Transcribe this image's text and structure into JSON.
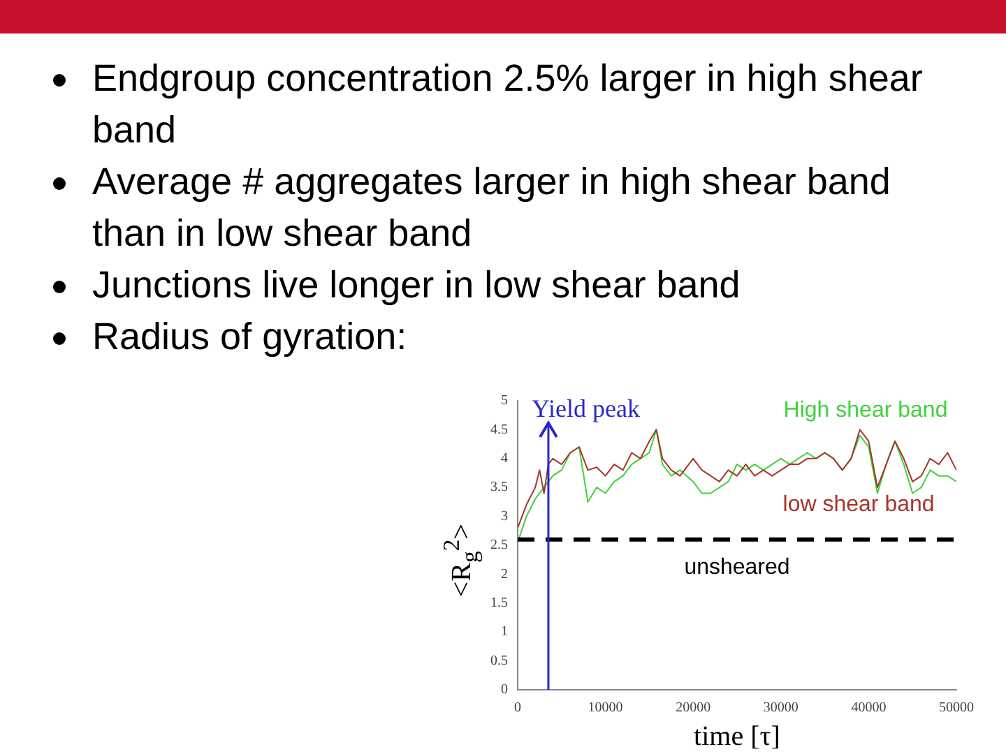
{
  "chart_data": {
    "type": "line",
    "annotations": [
      "Endgroup concentration 2.5% larger in high shear band",
      "Average # aggregates larger in high shear band than in low shear band",
      "Junctions live longer in low shear band",
      "Radius of gyration:"
    ],
    "xlabel": "time [τ]",
    "ylabel": "<R$_{g}$$^{2}$>",
    "xlim": [
      0,
      50000
    ],
    "xticks": [
      0,
      10000,
      20000,
      30000,
      40000,
      50000
    ],
    "ylim": [
      0,
      5
    ],
    "yticks": [
      0,
      0.5,
      1,
      1.5,
      2,
      2.5,
      3,
      3.5,
      4,
      4.5,
      5
    ],
    "grid": false,
    "legend": false,
    "marker": "none",
    "line_style": "solid",
    "x": [
      0,
      1000,
      2000,
      2500,
      3000,
      3500,
      4000,
      5000,
      6000,
      7000,
      8000,
      9000,
      10000,
      11000,
      12000,
      13000,
      14000,
      15000,
      15800,
      16500,
      17500,
      18500,
      20000,
      21000,
      22000,
      23000,
      24000,
      25000,
      26000,
      27000,
      28000,
      29000,
      30000,
      31000,
      32000,
      33000,
      34000,
      35000,
      36000,
      37000,
      38000,
      39000,
      40000,
      41000,
      42000,
      43000,
      44000,
      45000,
      46000,
      47000,
      48000,
      49000,
      50000
    ],
    "series": [
      {
        "name": "High shear band",
        "color": "#3ed23e",
        "values": [
          2.55,
          3.0,
          3.3,
          3.4,
          3.5,
          3.6,
          3.7,
          3.8,
          4.1,
          4.2,
          3.25,
          3.5,
          3.4,
          3.6,
          3.7,
          3.9,
          4.0,
          4.1,
          4.5,
          3.9,
          3.7,
          3.8,
          3.6,
          3.4,
          3.4,
          3.5,
          3.6,
          3.9,
          3.8,
          3.9,
          3.8,
          3.9,
          4.0,
          3.9,
          4.0,
          4.1,
          4.0,
          4.1,
          4.0,
          3.8,
          4.0,
          4.4,
          4.2,
          3.4,
          3.9,
          4.3,
          3.9,
          3.4,
          3.5,
          3.8,
          3.7,
          3.7,
          3.6
        ]
      },
      {
        "name": "low shear band",
        "color": "#a8342c",
        "values": [
          2.8,
          3.2,
          3.5,
          3.8,
          3.4,
          3.9,
          4.0,
          3.9,
          4.1,
          4.2,
          3.8,
          3.85,
          3.7,
          3.9,
          3.8,
          4.1,
          4.0,
          4.3,
          4.5,
          4.0,
          3.8,
          3.7,
          4.0,
          3.8,
          3.7,
          3.6,
          3.8,
          3.7,
          3.9,
          3.7,
          3.8,
          3.7,
          3.8,
          3.9,
          3.9,
          4.0,
          4.0,
          4.1,
          4.0,
          3.8,
          4.0,
          4.5,
          4.3,
          3.5,
          3.9,
          4.3,
          4.0,
          3.6,
          3.7,
          4.0,
          3.9,
          4.1,
          3.8
        ]
      }
    ],
    "ref_lines": [
      {
        "axis": "y",
        "value": 2.6,
        "label": "unsheared",
        "color": "#000000",
        "line_style": "dashed"
      },
      {
        "axis": "x",
        "value": 3500,
        "label": "Yield peak",
        "color": "#2828c8",
        "line_style": "solid"
      }
    ]
  }
}
